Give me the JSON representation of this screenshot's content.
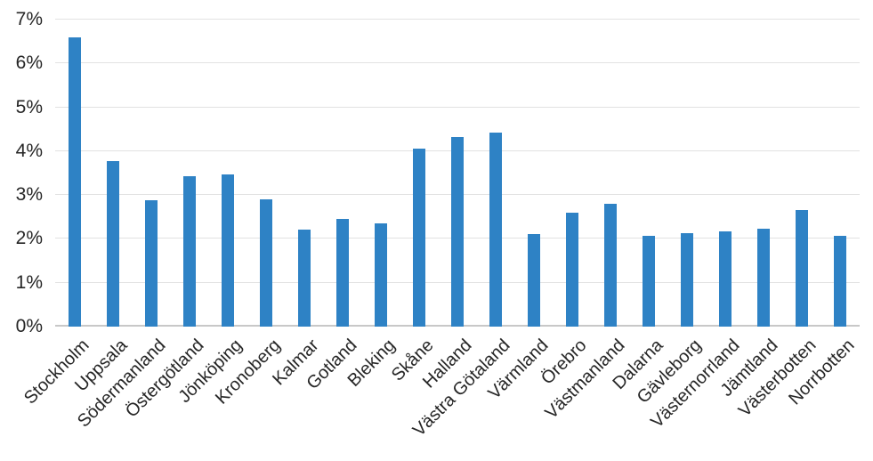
{
  "chart_data": {
    "type": "bar",
    "title": "",
    "xlabel": "",
    "ylabel": "",
    "categories": [
      "Stockholm",
      "Uppsala",
      "Södermanland",
      "Östergötland",
      "Jönköping",
      "Kronoberg",
      "Kalmar",
      "Gotland",
      "Bleking",
      "Skåne",
      "Halland",
      "Västra Götaland",
      "Värmland",
      "Örebro",
      "Västmanland",
      "Dalarna",
      "Gävleborg",
      "Västernorrland",
      "Jämtland",
      "Västerbotten",
      "Norrbotten"
    ],
    "values": [
      6.6,
      3.78,
      2.88,
      3.43,
      3.46,
      2.9,
      2.21,
      2.46,
      2.35,
      4.05,
      4.32,
      4.42,
      2.11,
      2.6,
      2.8,
      2.07,
      2.13,
      2.17,
      2.23,
      2.66,
      2.08
    ],
    "ylim": [
      0,
      7
    ],
    "ytick_step": 1,
    "ytick_labels": [
      "0%",
      "1%",
      "2%",
      "3%",
      "4%",
      "5%",
      "6%",
      "7%"
    ],
    "ytick_suffix": "%",
    "grid": true,
    "legend": false,
    "x_label_rotation_deg": 45,
    "bar_color": "#2e82c5",
    "gridline_color": "#e2e2e2",
    "axis_line_color": "#c8c8c8",
    "text_color": "#262626"
  }
}
